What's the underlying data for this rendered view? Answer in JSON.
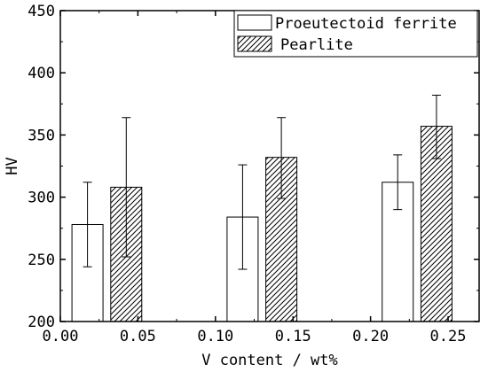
{
  "chart_data": {
    "type": "bar",
    "xlabel": "V content / wt%",
    "ylabel": "HV",
    "xlim": [
      0.0,
      0.27
    ],
    "ylim": [
      200,
      450
    ],
    "x_ticks": [
      0.0,
      0.05,
      0.1,
      0.15,
      0.2,
      0.25
    ],
    "x_tick_labels": [
      "0.00",
      "0.05",
      "0.10",
      "0.15",
      "0.20",
      "0.25"
    ],
    "y_ticks": [
      200,
      250,
      300,
      350,
      400,
      450
    ],
    "y_tick_labels": [
      "200",
      "250",
      "300",
      "350",
      "400",
      "450"
    ],
    "grid": false,
    "legend_position": "top-right",
    "categories": [
      "0.02",
      "0.12",
      "0.22"
    ],
    "series": [
      {
        "name": "Proeutectoid ferrite",
        "pattern": "open",
        "x": [
          0.0175,
          0.1175,
          0.2175
        ],
        "values": [
          278,
          284,
          312
        ],
        "error_low": [
          244,
          242,
          290
        ],
        "error_high": [
          312,
          326,
          334
        ]
      },
      {
        "name": "Pearlite",
        "pattern": "hatched",
        "x": [
          0.0425,
          0.1425,
          0.2425
        ],
        "values": [
          308,
          332,
          357
        ],
        "error_low": [
          252,
          299,
          331
        ],
        "error_high": [
          364,
          364,
          382
        ]
      }
    ],
    "colors": {
      "axis": "#000000",
      "bar_fill": "#ffffff",
      "hatch": "#000000"
    }
  }
}
